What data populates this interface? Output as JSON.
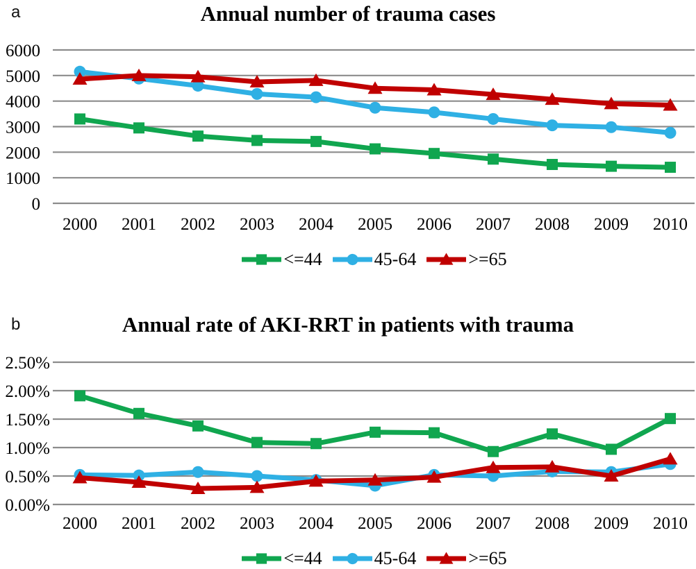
{
  "page": {
    "background": "#FFFFFF"
  },
  "chart_data": [
    {
      "type": "line",
      "panel_label": "a",
      "title": "Annual number of trauma cases",
      "categories": [
        "2000",
        "2001",
        "2002",
        "2003",
        "2004",
        "2005",
        "2006",
        "2007",
        "2008",
        "2009",
        "2010"
      ],
      "xlabel": "",
      "ylabel": "",
      "ylim": [
        0,
        6000
      ],
      "yticks": [
        0,
        1000,
        2000,
        3000,
        4000,
        5000,
        6000
      ],
      "ytick_labels": [
        "0",
        "1000",
        "2000",
        "3000",
        "4000",
        "5000",
        "6000"
      ],
      "grid": true,
      "gridline_color": "#8C8C8C",
      "legend_position": "bottom",
      "series": [
        {
          "name": "<=44",
          "marker": "square",
          "color": "#10A64F",
          "values": [
            3300,
            2950,
            2630,
            2460,
            2420,
            2130,
            1950,
            1730,
            1520,
            1450,
            1410
          ]
        },
        {
          "name": "45-64",
          "marker": "circle",
          "color": "#2FB0E4",
          "values": [
            5150,
            4880,
            4600,
            4280,
            4150,
            3740,
            3560,
            3300,
            3050,
            2980,
            2760
          ]
        },
        {
          "name": ">=65",
          "marker": "triangle",
          "color": "#C00000",
          "values": [
            4860,
            5000,
            4950,
            4750,
            4810,
            4500,
            4440,
            4260,
            4070,
            3900,
            3840
          ]
        }
      ]
    },
    {
      "type": "line",
      "panel_label": "b",
      "title": "Annual rate of AKI-RRT in patients with trauma",
      "categories": [
        "2000",
        "2001",
        "2002",
        "2003",
        "2004",
        "2005",
        "2006",
        "2007",
        "2008",
        "2009",
        "2010"
      ],
      "xlabel": "",
      "ylabel": "",
      "unit": "%",
      "ylim": [
        0,
        2.5
      ],
      "yticks": [
        0,
        0.5,
        1.0,
        1.5,
        2.0,
        2.5
      ],
      "ytick_labels": [
        "0.00%",
        "0.50%",
        "1.00%",
        "1.50%",
        "2.00%",
        "2.50%"
      ],
      "grid": true,
      "gridline_color": "#8C8C8C",
      "legend_position": "bottom",
      "series": [
        {
          "name": "<=44",
          "marker": "square",
          "color": "#10A64F",
          "values": [
            1.91,
            1.6,
            1.38,
            1.09,
            1.07,
            1.27,
            1.26,
            0.93,
            1.24,
            0.97,
            1.51
          ]
        },
        {
          "name": "45-64",
          "marker": "circle",
          "color": "#2FB0E4",
          "values": [
            0.52,
            0.51,
            0.57,
            0.5,
            0.43,
            0.33,
            0.52,
            0.5,
            0.58,
            0.57,
            0.71
          ]
        },
        {
          "name": ">=65",
          "marker": "triangle",
          "color": "#C00000",
          "values": [
            0.47,
            0.39,
            0.28,
            0.3,
            0.41,
            0.43,
            0.48,
            0.65,
            0.66,
            0.5,
            0.8
          ]
        }
      ]
    }
  ]
}
